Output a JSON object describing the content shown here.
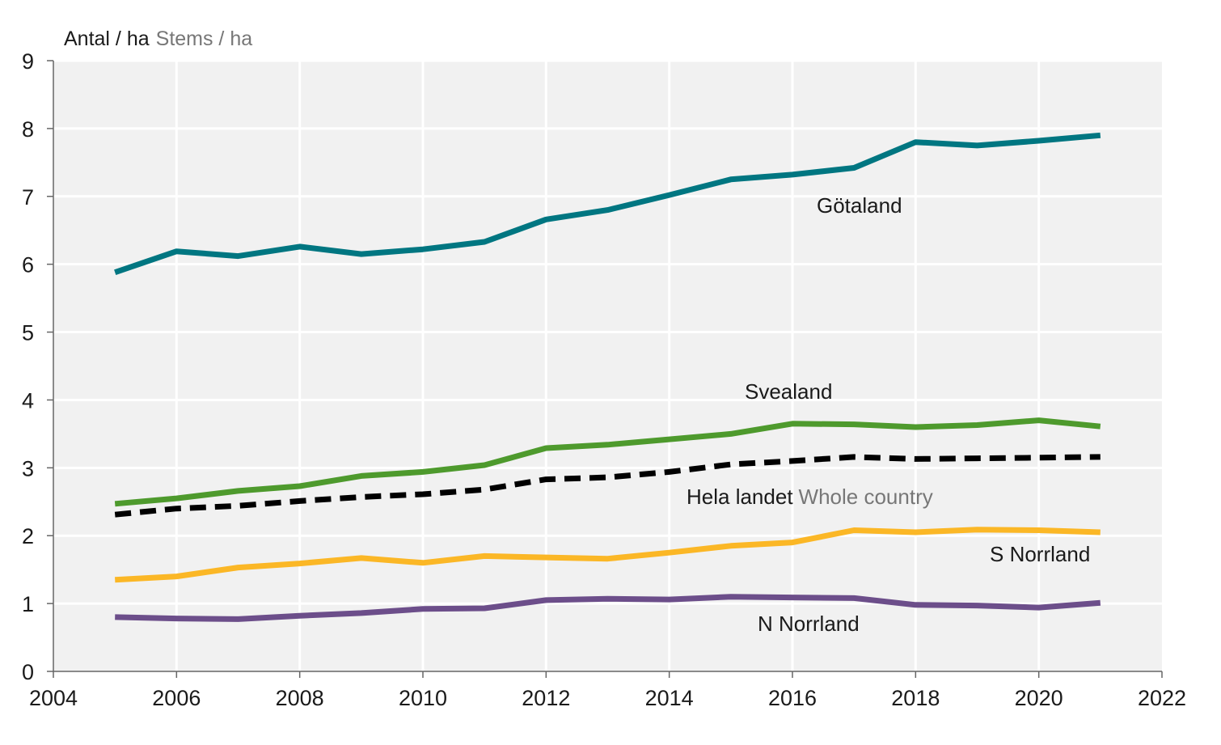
{
  "chart_data": {
    "type": "line",
    "ylabel": "Antal / ha",
    "ylabel_en": "Stems / ha",
    "xlim": [
      2004,
      2022
    ],
    "ylim": [
      0,
      9
    ],
    "xticks": [
      "2004",
      "2006",
      "2008",
      "2010",
      "2012",
      "2014",
      "2016",
      "2018",
      "2020",
      "2022"
    ],
    "yticks": [
      "0",
      "1",
      "2",
      "3",
      "4",
      "5",
      "6",
      "7",
      "8",
      "9"
    ],
    "grid": true,
    "x": [
      2005,
      2006,
      2007,
      2008,
      2009,
      2010,
      2011,
      2012,
      2013,
      2014,
      2015,
      2016,
      2017,
      2018,
      2019,
      2020,
      2021
    ],
    "series": [
      {
        "name": "Götaland",
        "name_en": "",
        "color": "#007681",
        "dash": false,
        "values": [
          5.88,
          6.19,
          6.12,
          6.26,
          6.15,
          6.22,
          6.33,
          6.66,
          6.8,
          7.02,
          7.25,
          7.32,
          7.42,
          7.8,
          7.75,
          7.82,
          7.9
        ]
      },
      {
        "name": "Svealand",
        "name_en": "",
        "color": "#4e9a2d",
        "dash": false,
        "values": [
          2.47,
          2.55,
          2.66,
          2.73,
          2.88,
          2.94,
          3.04,
          3.29,
          3.34,
          3.42,
          3.5,
          3.65,
          3.64,
          3.6,
          3.63,
          3.7,
          3.61
        ]
      },
      {
        "name": "Hela landet",
        "name_en": "Whole country",
        "color": "#000000",
        "dash": true,
        "values": [
          2.31,
          2.4,
          2.44,
          2.51,
          2.57,
          2.61,
          2.68,
          2.83,
          2.86,
          2.94,
          3.05,
          3.1,
          3.16,
          3.13,
          3.14,
          3.15,
          3.16
        ]
      },
      {
        "name": "S Norrland",
        "name_en": "",
        "color": "#fbb726",
        "dash": false,
        "values": [
          1.35,
          1.4,
          1.53,
          1.59,
          1.67,
          1.6,
          1.7,
          1.68,
          1.66,
          1.75,
          1.85,
          1.9,
          2.08,
          2.05,
          2.09,
          2.08,
          2.05
        ]
      },
      {
        "name": "N Norrland",
        "name_en": "",
        "color": "#6c4e8a",
        "dash": false,
        "values": [
          0.8,
          0.78,
          0.77,
          0.82,
          0.86,
          0.92,
          0.93,
          1.05,
          1.07,
          1.06,
          1.1,
          1.09,
          1.08,
          0.98,
          0.97,
          0.94,
          1.01
        ]
      }
    ]
  }
}
